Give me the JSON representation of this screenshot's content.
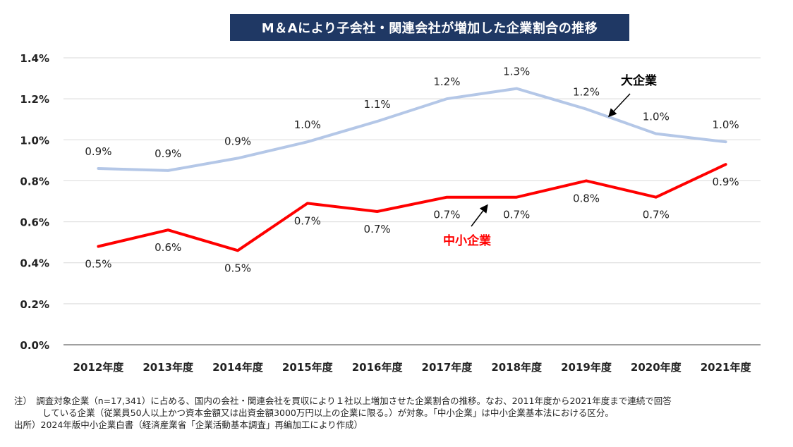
{
  "chart_data": {
    "type": "line",
    "title": "M＆Aにより子会社・関連会社が増加した企業割合の推移",
    "categories": [
      "2012年度",
      "2013年度",
      "2014年度",
      "2015年度",
      "2016年度",
      "2017年度",
      "2018年度",
      "2019年度",
      "2020年度",
      "2021年度"
    ],
    "series": [
      {
        "name": "大企業",
        "color": "#b4c7e7",
        "values": [
          0.86,
          0.85,
          0.91,
          0.99,
          1.09,
          1.2,
          1.25,
          1.15,
          1.03,
          0.99
        ],
        "labels": [
          "0.9%",
          "0.9%",
          "0.9%",
          "1.0%",
          "1.1%",
          "1.2%",
          "1.3%",
          "1.2%",
          "1.0%",
          "1.0%"
        ]
      },
      {
        "name": "中小企業",
        "color": "#ff0000",
        "values": [
          0.48,
          0.56,
          0.46,
          0.69,
          0.65,
          0.72,
          0.72,
          0.8,
          0.72,
          0.88
        ],
        "labels": [
          "0.5%",
          "0.6%",
          "0.5%",
          "0.7%",
          "0.7%",
          "0.7%",
          "0.7%",
          "0.8%",
          "0.7%",
          "0.9%"
        ]
      }
    ],
    "ylim": [
      0,
      1.4
    ],
    "yticks": [
      "0.0%",
      "0.2%",
      "0.4%",
      "0.6%",
      "0.8%",
      "1.0%",
      "1.2%",
      "1.4%"
    ],
    "grid": true,
    "legend": "inline series labels with arrows"
  },
  "notes": {
    "line1": "注）　調査対象企業（n=17,341）に占める、国内の会社・関連会社を買収により１社以上増加させた企業割合の推移。なお、2011年度から2021年度まで連続で回答",
    "line2": "している企業（従業員50人以上かつ資本金額又は出資金額3000万円以上の企業に限る。）が対象。「中小企業」は中小企業基本法における区分。",
    "line3": "出所）2024年版中小企業白書（経済産業省「企業活動基本調査」再編加工により作成）"
  }
}
